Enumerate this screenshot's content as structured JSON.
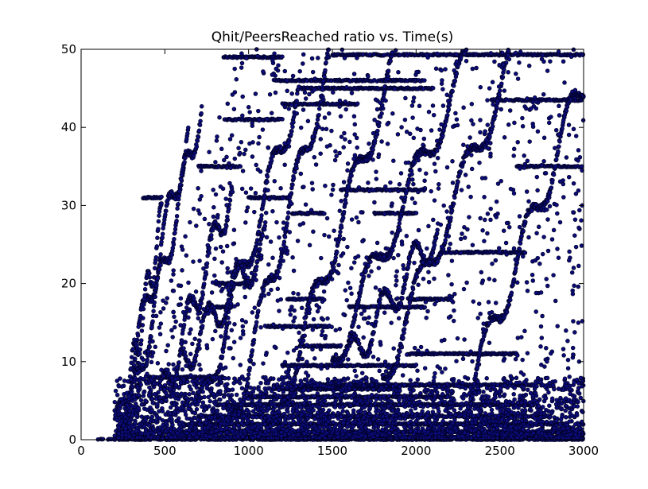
{
  "chart_data": {
    "type": "scatter",
    "title": "Qhit/PeersReached ratio vs. Time(s)",
    "xlabel": "",
    "ylabel": "",
    "xlim": [
      0,
      3000
    ],
    "ylim": [
      0,
      50
    ],
    "x_ticks": [
      0,
      500,
      1000,
      1500,
      2000,
      2500,
      3000
    ],
    "y_ticks": [
      0,
      10,
      20,
      30,
      40,
      50
    ],
    "grid": false,
    "legend": "none",
    "marker_color": "#0b0b7a",
    "marker_edge_color": "#000020",
    "background": "#ffffff",
    "series": [
      {
        "note_points": "dense point cloud; representative traces",
        "horizontal_runs": [
          {
            "x": [
              60,
              200
            ],
            "y": 0
          },
          {
            "x": [
              200,
              3000
            ],
            "y": 0.3
          },
          {
            "x": [
              400,
              3000
            ],
            "y": 1
          },
          {
            "x": [
              600,
              2900
            ],
            "y": 2
          },
          {
            "x": [
              700,
              2800
            ],
            "y": 3
          },
          {
            "x": [
              800,
              2700
            ],
            "y": 4.5
          },
          {
            "x": [
              1000,
              2200
            ],
            "y": 5.5
          },
          {
            "x": [
              1150,
              1900
            ],
            "y": 6.5
          },
          {
            "x": [
              1300,
              2700
            ],
            "y": 7
          },
          {
            "x": [
              400,
              850
            ],
            "y": 8
          },
          {
            "x": [
              1200,
              2000
            ],
            "y": 9.5
          },
          {
            "x": [
              1950,
              2600
            ],
            "y": 11
          },
          {
            "x": [
              1300,
              1550
            ],
            "y": 12
          },
          {
            "x": [
              1100,
              1480
            ],
            "y": 14.5
          },
          {
            "x": [
              800,
              900
            ],
            "y": 17
          },
          {
            "x": [
              1600,
              2050
            ],
            "y": 17
          },
          {
            "x": [
              1220,
              1450
            ],
            "y": 18
          },
          {
            "x": [
              1950,
              2200
            ],
            "y": 18
          },
          {
            "x": [
              800,
              1000
            ],
            "y": 20
          },
          {
            "x": [
              2150,
              2650
            ],
            "y": 24
          },
          {
            "x": [
              1260,
              1450
            ],
            "y": 29
          },
          {
            "x": [
              1750,
              2000
            ],
            "y": 29
          },
          {
            "x": [
              370,
              480
            ],
            "y": 31
          },
          {
            "x": [
              1000,
              1250
            ],
            "y": 31
          },
          {
            "x": [
              1550,
              2050
            ],
            "y": 32
          },
          {
            "x": [
              700,
              950
            ],
            "y": 35
          },
          {
            "x": [
              2600,
              3000
            ],
            "y": 35
          },
          {
            "x": [
              850,
              1200
            ],
            "y": 41
          },
          {
            "x": [
              1200,
              1650
            ],
            "y": 43
          },
          {
            "x": [
              2450,
              3000
            ],
            "y": 43.5
          },
          {
            "x": [
              1150,
              2050
            ],
            "y": 46
          },
          {
            "x": [
              1300,
              2100
            ],
            "y": 45
          },
          {
            "x": [
              850,
              1200
            ],
            "y": 49
          },
          {
            "x": [
              1500,
              3000
            ],
            "y": 49.3
          }
        ],
        "rising_traces": [
          {
            "x": [
              210,
              640
            ],
            "y": [
              1,
              39
            ]
          },
          {
            "x": [
              250,
              480
            ],
            "y": [
              3,
              28
            ]
          },
          {
            "x": [
              300,
              720
            ],
            "y": [
              4,
              43
            ]
          },
          {
            "x": [
              480,
              900
            ],
            "y": [
              5,
              32
            ]
          },
          {
            "x": [
              700,
              1300
            ],
            "y": [
              3,
              45
            ]
          },
          {
            "x": [
              900,
              1500
            ],
            "y": [
              2,
              50
            ]
          },
          {
            "x": [
              1200,
              1900
            ],
            "y": [
              5,
              50
            ]
          },
          {
            "x": [
              1500,
              2300
            ],
            "y": [
              10,
              48
            ]
          },
          {
            "x": [
              1800,
              2600
            ],
            "y": [
              8,
              50
            ]
          },
          {
            "x": [
              2300,
              3000
            ],
            "y": [
              5,
              46
            ]
          },
          {
            "x": [
              1600,
              2130
            ],
            "y": [
              10,
              27
            ]
          },
          {
            "x": [
              600,
              1100
            ],
            "y": [
              10,
              25
            ]
          }
        ]
      }
    ]
  }
}
